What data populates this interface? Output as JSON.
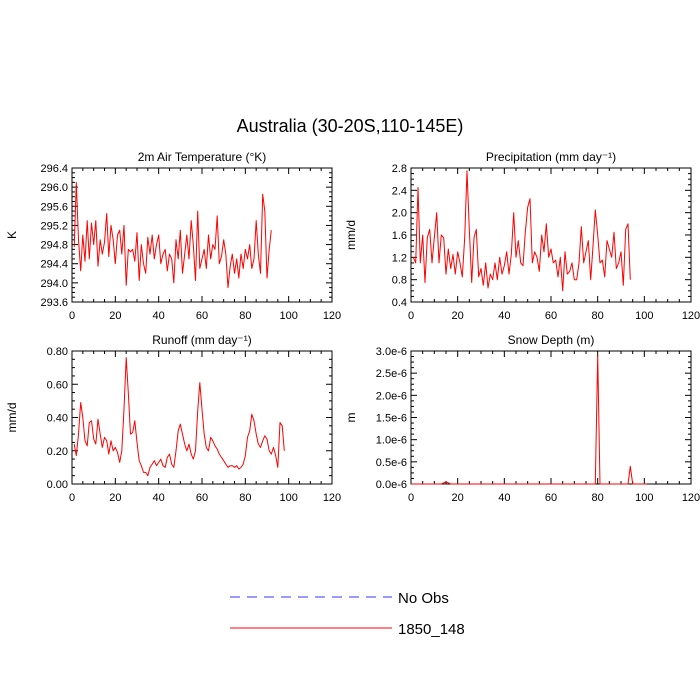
{
  "title": "Australia (30-20S,110-145E)",
  "chart_data": [
    {
      "type": "line",
      "title": "2m Air Temperature (°K)",
      "ylabel": "K",
      "xlim": [
        0,
        120
      ],
      "ylim": [
        293.6,
        296.4
      ],
      "xticks": [
        "0",
        "20",
        "40",
        "60",
        "80",
        "100",
        "120"
      ],
      "yticks": [
        "293.6",
        "294.0",
        "294.4",
        "294.8",
        "295.2",
        "295.6",
        "296.0",
        "296.4"
      ],
      "series": [
        {
          "name": "1850_148",
          "color": "#ff0000",
          "values": [
            294.75,
            296.1,
            294.9,
            294.25,
            295.0,
            294.45,
            295.3,
            294.5,
            295.25,
            294.8,
            295.3,
            294.35,
            294.9,
            294.6,
            294.85,
            295.45,
            294.55,
            295.2,
            294.9,
            294.4,
            295.0,
            295.1,
            294.6,
            295.2,
            293.95,
            294.7,
            294.65,
            294.7,
            294.45,
            295.05,
            294.05,
            294.8,
            294.4,
            294.2,
            294.95,
            294.6,
            295.0,
            294.5,
            294.8,
            295.0,
            294.4,
            294.6,
            294.7,
            294.25,
            294.6,
            294.5,
            294.0,
            294.9,
            294.5,
            295.1,
            294.2,
            294.6,
            295.0,
            294.5,
            295.3,
            294.8,
            294.05,
            295.5,
            294.3,
            294.5,
            294.7,
            294.3,
            295.0,
            294.5,
            294.8,
            294.7,
            295.4,
            294.4,
            294.55,
            294.9,
            294.6,
            293.9,
            294.35,
            294.6,
            294.2,
            294.5,
            294.1,
            294.6,
            294.3,
            294.7,
            294.5,
            294.8,
            294.3,
            294.5,
            295.3,
            294.6,
            294.2,
            295.85,
            295.5,
            294.1,
            294.7,
            295.1
          ]
        }
      ]
    },
    {
      "type": "line",
      "title": "Precipitation (mm day⁻¹)",
      "ylabel": "mm/d",
      "xlim": [
        0,
        120
      ],
      "ylim": [
        0.4,
        2.8
      ],
      "xticks": [
        "0",
        "20",
        "40",
        "60",
        "80",
        "100",
        "120"
      ],
      "yticks": [
        "0.4",
        "0.8",
        "1.2",
        "1.6",
        "2.0",
        "2.4",
        "2.8"
      ],
      "series": [
        {
          "name": "1850_148",
          "color": "#ff0000",
          "values": [
            1.2,
            1.1,
            2.45,
            1.1,
            1.6,
            0.75,
            1.55,
            1.7,
            1.1,
            1.55,
            2.0,
            1.1,
            1.6,
            1.55,
            0.9,
            1.35,
            1.0,
            1.25,
            0.9,
            1.3,
            1.1,
            0.85,
            1.55,
            2.75,
            1.7,
            0.75,
            1.55,
            1.7,
            0.85,
            1.0,
            0.7,
            1.1,
            0.65,
            0.9,
            0.8,
            1.1,
            0.8,
            1.2,
            0.9,
            1.05,
            1.3,
            0.9,
            1.25,
            2.0,
            1.2,
            1.5,
            1.1,
            1.05,
            1.65,
            2.1,
            2.25,
            1.1,
            1.3,
            1.2,
            0.95,
            1.6,
            1.3,
            1.8,
            1.2,
            1.35,
            1.1,
            1.15,
            0.85,
            1.2,
            0.6,
            1.3,
            0.9,
            0.95,
            1.1,
            0.8,
            0.8,
            1.1,
            1.75,
            1.1,
            1.3,
            1.5,
            0.8,
            1.4,
            2.05,
            1.6,
            1.1,
            1.15,
            0.85,
            1.5,
            1.35,
            1.2,
            1.65,
            1.0,
            1.1,
            1.3,
            0.7,
            1.7,
            1.8,
            0.8
          ]
        }
      ]
    },
    {
      "type": "line",
      "title": "Runoff (mm day⁻¹)",
      "ylabel": "mm/d",
      "xlim": [
        0,
        120
      ],
      "ylim": [
        0.0,
        0.8
      ],
      "xticks": [
        "0",
        "20",
        "40",
        "60",
        "80",
        "100",
        "120"
      ],
      "yticks": [
        "0.00",
        "0.20",
        "0.40",
        "0.60",
        "0.80"
      ],
      "series": [
        {
          "name": "1850_148",
          "color": "#ff0000",
          "values": [
            0.24,
            0.17,
            0.3,
            0.49,
            0.4,
            0.26,
            0.23,
            0.37,
            0.38,
            0.27,
            0.24,
            0.39,
            0.3,
            0.22,
            0.28,
            0.26,
            0.18,
            0.26,
            0.2,
            0.22,
            0.19,
            0.13,
            0.2,
            0.45,
            0.76,
            0.55,
            0.3,
            0.31,
            0.38,
            0.25,
            0.14,
            0.11,
            0.07,
            0.07,
            0.05,
            0.1,
            0.12,
            0.14,
            0.11,
            0.13,
            0.15,
            0.11,
            0.1,
            0.16,
            0.18,
            0.12,
            0.1,
            0.2,
            0.32,
            0.36,
            0.3,
            0.24,
            0.2,
            0.24,
            0.18,
            0.15,
            0.2,
            0.44,
            0.61,
            0.45,
            0.3,
            0.22,
            0.2,
            0.28,
            0.26,
            0.23,
            0.21,
            0.18,
            0.16,
            0.14,
            0.12,
            0.1,
            0.11,
            0.11,
            0.1,
            0.11,
            0.09,
            0.1,
            0.12,
            0.17,
            0.28,
            0.32,
            0.42,
            0.38,
            0.3,
            0.24,
            0.22,
            0.26,
            0.29,
            0.27,
            0.2,
            0.18,
            0.22,
            0.17,
            0.1,
            0.37,
            0.35,
            0.2
          ]
        }
      ]
    },
    {
      "type": "line",
      "title": "Snow Depth (m)",
      "ylabel": "m",
      "xlim": [
        0,
        120
      ],
      "ylim": [
        0.0,
        3e-06
      ],
      "xticks": [
        "0",
        "20",
        "40",
        "60",
        "80",
        "100",
        "120"
      ],
      "yticks": [
        "0.0e-6",
        "0.5e-6",
        "1.0e-6",
        "1.5e-6",
        "2.0e-6",
        "2.5e-6",
        "3.0e-6"
      ],
      "series": [
        {
          "name": "1850_148",
          "color": "#ff0000",
          "points": [
            [
              0,
              0
            ],
            [
              13,
              0
            ],
            [
              15,
              5e-08
            ],
            [
              17,
              0
            ],
            [
              78,
              0
            ],
            [
              79,
              0
            ],
            [
              80,
              2.9e-06
            ],
            [
              81,
              0
            ],
            [
              92,
              0
            ],
            [
              93,
              0
            ],
            [
              94,
              4e-07
            ],
            [
              95,
              0
            ],
            [
              101,
              0
            ]
          ]
        }
      ]
    }
  ],
  "legend": {
    "items": [
      {
        "label": "No Obs",
        "color": "#3333ff",
        "dashed": true
      },
      {
        "label": "1850_148",
        "color": "#ff0000",
        "dashed": false
      }
    ]
  }
}
